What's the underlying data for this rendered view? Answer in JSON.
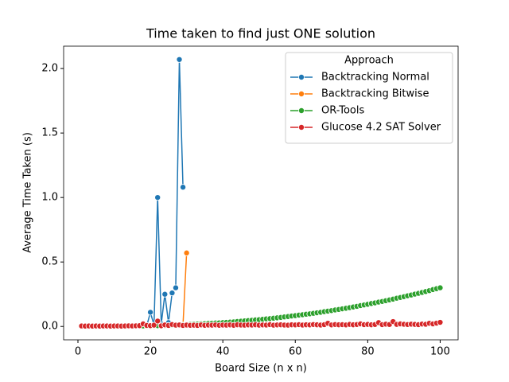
{
  "chart_data": {
    "type": "line",
    "title": "Time taken to find just ONE solution",
    "x_label": "Board Size (n x n)",
    "y_label": "Average Time Taken (s)",
    "xlim": [
      -3.95,
      104.95
    ],
    "ylim": [
      -0.1035,
      2.1735
    ],
    "xticks": [
      0,
      20,
      40,
      60,
      80,
      100
    ],
    "yticks": [
      {
        "value": 0,
        "label": "0.0"
      },
      0.5,
      {
        "value": 1,
        "label": "1.0"
      },
      1.5,
      {
        "value": 2,
        "label": "2.0"
      }
    ],
    "legend_title": "Approach",
    "legend": "upper right",
    "series": [
      {
        "name": "Backtracking Normal",
        "color": "#1f77b4",
        "x": [
          1,
          2,
          3,
          4,
          5,
          6,
          7,
          8,
          9,
          10,
          11,
          12,
          13,
          14,
          15,
          16,
          17,
          18,
          19,
          20,
          21,
          22,
          23,
          24,
          25,
          26,
          27,
          28,
          29
        ],
        "values": [
          0,
          0,
          0,
          0,
          0,
          0,
          0,
          0,
          0,
          0,
          0,
          0,
          0,
          0,
          0,
          0,
          0.001,
          0.002,
          0.005,
          0.11,
          0.01,
          1.0,
          0.02,
          0.25,
          0.03,
          0.26,
          0.3,
          2.07,
          1.08
        ]
      },
      {
        "name": "Backtracking Bitwise",
        "color": "#ff7f0e",
        "x": [
          1,
          2,
          3,
          4,
          5,
          6,
          7,
          8,
          9,
          10,
          11,
          12,
          13,
          14,
          15,
          16,
          17,
          18,
          19,
          20,
          21,
          22,
          23,
          24,
          25,
          26,
          27,
          28,
          29,
          30
        ],
        "values": [
          0,
          0,
          0,
          0,
          0,
          0,
          0,
          0,
          0,
          0,
          0,
          0,
          0,
          0,
          0,
          0,
          0,
          0,
          0,
          0,
          0.001,
          0.003,
          0.002,
          0.004,
          0.005,
          0.006,
          0.008,
          0.01,
          0.01,
          0.57
        ]
      },
      {
        "name": "OR-Tools",
        "color": "#2ca02c",
        "x": [
          1,
          2,
          3,
          4,
          5,
          6,
          7,
          8,
          9,
          10,
          11,
          12,
          13,
          14,
          15,
          16,
          17,
          18,
          19,
          20,
          21,
          22,
          23,
          24,
          25,
          26,
          27,
          28,
          29,
          30,
          31,
          32,
          33,
          34,
          35,
          36,
          37,
          38,
          39,
          40,
          41,
          42,
          43,
          44,
          45,
          46,
          47,
          48,
          49,
          50,
          51,
          52,
          53,
          54,
          55,
          56,
          57,
          58,
          59,
          60,
          61,
          62,
          63,
          64,
          65,
          66,
          67,
          68,
          69,
          70,
          71,
          72,
          73,
          74,
          75,
          76,
          77,
          78,
          79,
          80,
          81,
          82,
          83,
          84,
          85,
          86,
          87,
          88,
          89,
          90,
          91,
          92,
          93,
          94,
          95,
          96,
          97,
          98,
          99,
          100
        ],
        "values": [
          0,
          0,
          0,
          0,
          0,
          0,
          0.001,
          0.001,
          0.001,
          0.001,
          0.001,
          0.002,
          0.002,
          0.002,
          0.003,
          0.003,
          0.003,
          0.004,
          0.004,
          0.005,
          0.006,
          0.006,
          0.007,
          0.008,
          0.009,
          0.01,
          0.011,
          0.012,
          0.014,
          0.015,
          0.016,
          0.018,
          0.019,
          0.021,
          0.022,
          0.024,
          0.025,
          0.027,
          0.028,
          0.03,
          0.032,
          0.034,
          0.036,
          0.039,
          0.041,
          0.043,
          0.046,
          0.048,
          0.051,
          0.053,
          0.056,
          0.059,
          0.061,
          0.064,
          0.067,
          0.07,
          0.074,
          0.077,
          0.081,
          0.084,
          0.088,
          0.091,
          0.095,
          0.098,
          0.102,
          0.106,
          0.11,
          0.115,
          0.119,
          0.123,
          0.128,
          0.132,
          0.137,
          0.141,
          0.146,
          0.151,
          0.156,
          0.162,
          0.167,
          0.172,
          0.178,
          0.183,
          0.189,
          0.194,
          0.2,
          0.206,
          0.212,
          0.219,
          0.225,
          0.231,
          0.238,
          0.244,
          0.251,
          0.257,
          0.264,
          0.271,
          0.278,
          0.286,
          0.293,
          0.3
        ]
      },
      {
        "name": "Glucose 4.2 SAT Solver",
        "color": "#d62728",
        "x": [
          1,
          2,
          3,
          4,
          5,
          6,
          7,
          8,
          9,
          10,
          11,
          12,
          13,
          14,
          15,
          16,
          17,
          18,
          19,
          20,
          21,
          22,
          23,
          24,
          25,
          26,
          27,
          28,
          29,
          30,
          31,
          32,
          33,
          34,
          35,
          36,
          37,
          38,
          39,
          40,
          41,
          42,
          43,
          44,
          45,
          46,
          47,
          48,
          49,
          50,
          51,
          52,
          53,
          54,
          55,
          56,
          57,
          58,
          59,
          60,
          61,
          62,
          63,
          64,
          65,
          66,
          67,
          68,
          69,
          70,
          71,
          72,
          73,
          74,
          75,
          76,
          77,
          78,
          79,
          80,
          81,
          82,
          83,
          84,
          85,
          86,
          87,
          88,
          89,
          90,
          91,
          92,
          93,
          94,
          95,
          96,
          97,
          98,
          99,
          100
        ],
        "values": [
          0.004,
          0.003,
          0.004,
          0.003,
          0.004,
          0.003,
          0.004,
          0.004,
          0.003,
          0.004,
          0.004,
          0.003,
          0.004,
          0.005,
          0.004,
          0.005,
          0.006,
          0.02,
          0.008,
          0.006,
          0.01,
          0.042,
          0.005,
          0.012,
          0.008,
          0.015,
          0.01,
          0.012,
          0.008,
          0.011,
          0.009,
          0.01,
          0.008,
          0.012,
          0.009,
          0.011,
          0.01,
          0.012,
          0.009,
          0.011,
          0.01,
          0.012,
          0.009,
          0.013,
          0.011,
          0.01,
          0.012,
          0.011,
          0.013,
          0.01,
          0.012,
          0.011,
          0.014,
          0.01,
          0.012,
          0.013,
          0.011,
          0.01,
          0.013,
          0.012,
          0.014,
          0.011,
          0.013,
          0.012,
          0.015,
          0.013,
          0.011,
          0.014,
          0.025,
          0.012,
          0.015,
          0.013,
          0.014,
          0.012,
          0.016,
          0.013,
          0.015,
          0.02,
          0.014,
          0.016,
          0.013,
          0.015,
          0.03,
          0.014,
          0.018,
          0.015,
          0.038,
          0.016,
          0.02,
          0.017,
          0.015,
          0.018,
          0.016,
          0.014,
          0.019,
          0.017,
          0.025,
          0.02,
          0.026,
          0.032
        ]
      }
    ]
  }
}
